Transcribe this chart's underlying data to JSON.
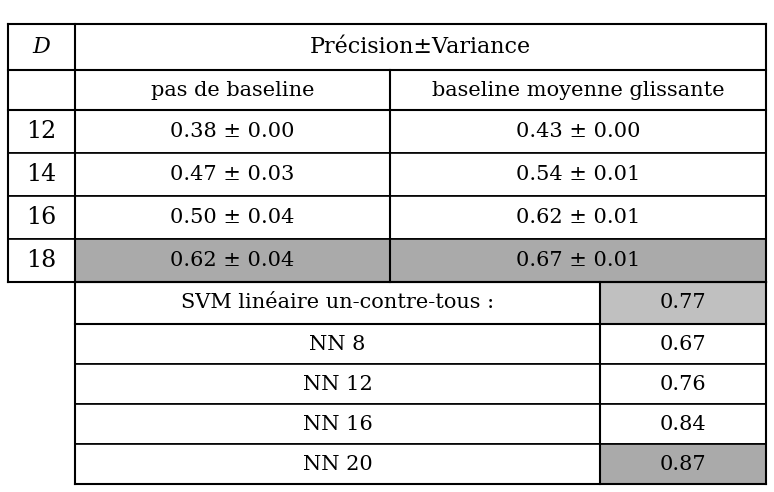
{
  "header_top": [
    "D",
    "Précision±Variance"
  ],
  "header_sub": [
    "pas de baseline",
    "baseline moyenne glissante"
  ],
  "main_rows": [
    {
      "D": "12",
      "col1": "0.38 ± 0.00",
      "col2": "0.43 ± 0.00",
      "highlight": false
    },
    {
      "D": "14",
      "col1": "0.47 ± 0.03",
      "col2": "0.54 ± 0.01",
      "highlight": false
    },
    {
      "D": "16",
      "col1": "0.50 ± 0.04",
      "col2": "0.62 ± 0.01",
      "highlight": false
    },
    {
      "D": "18",
      "col1": "0.62 ± 0.04",
      "col2": "0.67 ± 0.01",
      "highlight": true
    }
  ],
  "svm_row": {
    "label": "SVM linéaire un-contre-tous :",
    "value": "0.77"
  },
  "nn_rows": [
    {
      "label": "NN 8",
      "value": "0.67",
      "highlight": false
    },
    {
      "label": "NN 12",
      "value": "0.76",
      "highlight": false
    },
    {
      "label": "NN 16",
      "value": "0.84",
      "highlight": false
    },
    {
      "label": "NN 20",
      "value": "0.87",
      "highlight": true
    }
  ],
  "highlight_color": "#aaaaaa",
  "svm_value_color": "#c0c0c0",
  "bg_color": "#ffffff",
  "font_size": 15,
  "header_font_size": 16,
  "d_font_size": 17,
  "lw": 1.2
}
